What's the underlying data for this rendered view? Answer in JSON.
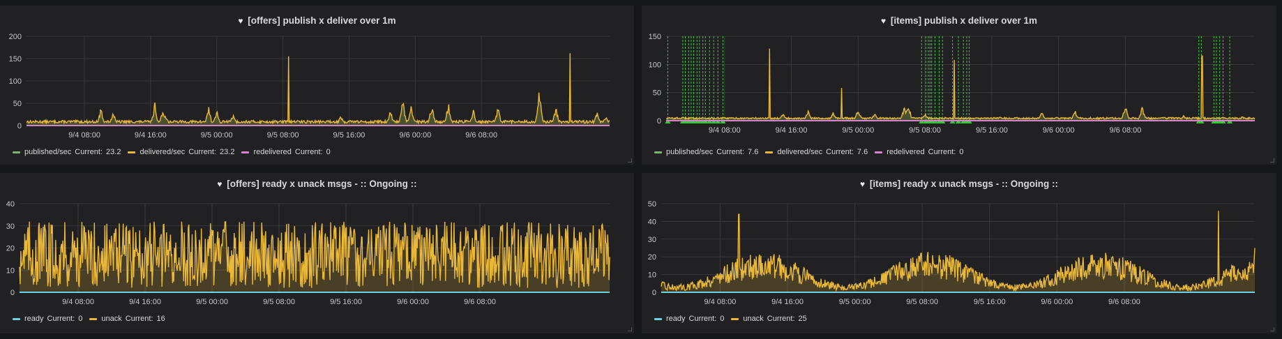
{
  "panels": [
    {
      "title": "[offers] publish x deliver over 1m",
      "legend": [
        {
          "label": "published/sec",
          "current_label": "Current:",
          "current": "23.2",
          "color": "#7eb26d"
        },
        {
          "label": "delivered/sec",
          "current_label": "Current:",
          "current": "23.2",
          "color": "#eab839"
        },
        {
          "label": "redelivered",
          "current_label": "Current:",
          "current": "0",
          "color": "#d683ce"
        }
      ]
    },
    {
      "title": "[items] publish x deliver over 1m",
      "legend": [
        {
          "label": "published/sec",
          "current_label": "Current:",
          "current": "7.6",
          "color": "#7eb26d"
        },
        {
          "label": "delivered/sec",
          "current_label": "Current:",
          "current": "7.6",
          "color": "#eab839"
        },
        {
          "label": "redelivered",
          "current_label": "Current:",
          "current": "0",
          "color": "#d683ce"
        }
      ]
    },
    {
      "title": "[offers] ready x unack msgs - :: Ongoing ::",
      "legend": [
        {
          "label": "ready",
          "current_label": "Current:",
          "current": "0",
          "color": "#6ed0e0"
        },
        {
          "label": "unack",
          "current_label": "Current:",
          "current": "16",
          "color": "#eab839"
        }
      ]
    },
    {
      "title": "[items] ready x unack msgs - :: Ongoing ::",
      "legend": [
        {
          "label": "ready",
          "current_label": "Current:",
          "current": "0",
          "color": "#6ed0e0"
        },
        {
          "label": "unack",
          "current_label": "Current:",
          "current": "25",
          "color": "#eab839"
        }
      ]
    }
  ],
  "chart_data": [
    {
      "type": "area",
      "title": "[offers] publish x deliver over 1m",
      "xlabel": "",
      "ylabel": "",
      "x_ticks": [
        "9/4 08:00",
        "9/4 16:00",
        "9/5 00:00",
        "9/5 08:00",
        "9/5 16:00",
        "9/6 00:00",
        "9/6 08:00"
      ],
      "y_ticks": [
        0,
        50,
        100,
        150,
        200
      ],
      "ylim": [
        0,
        200
      ],
      "x_range_hours": [
        -7,
        63.5
      ],
      "grid": true,
      "legend_position": "bottom-left",
      "base_level": 8,
      "noise": 6,
      "bumps": [
        {
          "x": 2,
          "y": 40
        },
        {
          "x": 3.5,
          "y": 35
        },
        {
          "x": 8.5,
          "y": 55
        },
        {
          "x": 9.5,
          "y": 40
        },
        {
          "x": 9.8,
          "y": 30
        },
        {
          "x": 15,
          "y": 45
        },
        {
          "x": 16,
          "y": 35
        },
        {
          "x": 18,
          "y": 30
        },
        {
          "x": 31,
          "y": 28
        },
        {
          "x": 37,
          "y": 35
        },
        {
          "x": 38.5,
          "y": 60
        },
        {
          "x": 39.5,
          "y": 45
        },
        {
          "x": 42,
          "y": 50
        },
        {
          "x": 44,
          "y": 55
        },
        {
          "x": 47,
          "y": 40
        },
        {
          "x": 50,
          "y": 45
        },
        {
          "x": 55,
          "y": 90
        },
        {
          "x": 57,
          "y": 45
        },
        {
          "x": 62,
          "y": 35
        },
        {
          "x": 63,
          "y": 23
        }
      ],
      "spikes": [
        {
          "x": 24.7,
          "y": 155
        },
        {
          "x": 58.7,
          "y": 162
        }
      ],
      "series": [
        {
          "name": "published/sec",
          "color": "#7eb26d",
          "role": "main"
        },
        {
          "name": "delivered/sec",
          "color": "#eab839",
          "role": "overlay"
        },
        {
          "name": "redelivered",
          "color": "#d683ce",
          "role": "flat",
          "value": 0
        }
      ],
      "annotations_x": []
    },
    {
      "type": "area",
      "title": "[items] publish x deliver over 1m",
      "xlabel": "",
      "ylabel": "",
      "x_ticks": [
        "9/4 08:00",
        "9/4 16:00",
        "9/5 00:00",
        "9/5 08:00",
        "9/5 16:00",
        "9/6 00:00",
        "9/6 08:00"
      ],
      "y_ticks": [
        0,
        50,
        100,
        150
      ],
      "ylim": [
        0,
        150
      ],
      "x_range_hours": [
        -7,
        63.5
      ],
      "grid": true,
      "legend_position": "bottom-left",
      "base_level": 4,
      "noise": 3,
      "bumps": [
        {
          "x": 7,
          "y": 15
        },
        {
          "x": 10,
          "y": 18
        },
        {
          "x": 13,
          "y": 15
        },
        {
          "x": 16,
          "y": 22
        },
        {
          "x": 18,
          "y": 16
        },
        {
          "x": 21.5,
          "y": 25
        },
        {
          "x": 22,
          "y": 32
        },
        {
          "x": 24,
          "y": 15
        },
        {
          "x": 33,
          "y": 8
        },
        {
          "x": 38,
          "y": 15
        },
        {
          "x": 42,
          "y": 20
        },
        {
          "x": 48,
          "y": 28
        },
        {
          "x": 50,
          "y": 25
        },
        {
          "x": 55,
          "y": 10
        },
        {
          "x": 62,
          "y": 8
        }
      ],
      "spikes": [
        {
          "x": 14,
          "y": 58
        },
        {
          "x": 27.5,
          "y": 108
        },
        {
          "x": 5.4,
          "y": 128
        },
        {
          "x": 57.2,
          "y": 115
        }
      ],
      "series": [
        {
          "name": "published/sec",
          "color": "#7eb26d",
          "role": "main"
        },
        {
          "name": "delivered/sec",
          "color": "#eab839",
          "role": "overlay"
        },
        {
          "name": "redelivered",
          "color": "#d683ce",
          "role": "flat",
          "value": 0
        }
      ],
      "annotations_x": [
        -6.8,
        -5.0,
        -4.7,
        -4.3,
        -4.0,
        -3.7,
        -3.3,
        -3.0,
        -2.6,
        -2.3,
        -1.8,
        -1.3,
        -0.8,
        -0.2,
        23.6,
        24.1,
        24.4,
        24.6,
        24.8,
        25.2,
        25.7,
        26.1,
        27.3,
        28.0,
        28.6,
        29.0,
        29.3,
        56.8,
        57.1,
        58.6,
        58.9,
        59.3,
        59.7,
        60.5
      ],
      "annotation_color": "#37c837"
    },
    {
      "type": "area",
      "title": "[offers] ready x unack msgs - :: Ongoing ::",
      "xlabel": "",
      "ylabel": "",
      "x_ticks": [
        "9/4 08:00",
        "9/4 16:00",
        "9/5 00:00",
        "9/5 08:00",
        "9/5 16:00",
        "9/6 00:00",
        "9/6 08:00"
      ],
      "y_ticks": [
        0,
        10,
        20,
        30,
        40
      ],
      "ylim": [
        0,
        40
      ],
      "x_range_hours": [
        -7,
        63.5
      ],
      "grid": true,
      "legend_position": "bottom-left",
      "noise_kind": "dense",
      "mean": 17,
      "amp": 15,
      "maxv": 35,
      "series": [
        {
          "name": "ready",
          "color": "#6ed0e0",
          "role": "flat",
          "value": 0
        },
        {
          "name": "unack",
          "color": "#eab839",
          "role": "main",
          "last": 16
        }
      ],
      "annotations_x": []
    },
    {
      "type": "area",
      "title": "[items] ready x unack msgs - :: Ongoing ::",
      "xlabel": "",
      "ylabel": "",
      "x_ticks": [
        "9/4 08:00",
        "9/4 16:00",
        "9/5 00:00",
        "9/5 08:00",
        "9/5 16:00",
        "9/6 00:00",
        "9/6 08:00"
      ],
      "y_ticks": [
        0,
        10,
        20,
        30,
        40,
        50
      ],
      "ylim": [
        0,
        50
      ],
      "x_range_hours": [
        -7,
        63.5
      ],
      "grid": true,
      "legend_position": "bottom-left",
      "noise_kind": "burst",
      "mean": 10,
      "amp": 12,
      "maxv": 45,
      "spikes": [
        {
          "x": 2.2,
          "y": 44
        },
        {
          "x": 59.2,
          "y": 46
        }
      ],
      "series": [
        {
          "name": "ready",
          "color": "#6ed0e0",
          "role": "flat",
          "value": 0
        },
        {
          "name": "unack",
          "color": "#eab839",
          "role": "main",
          "last": 25
        }
      ],
      "annotations_x": []
    }
  ]
}
